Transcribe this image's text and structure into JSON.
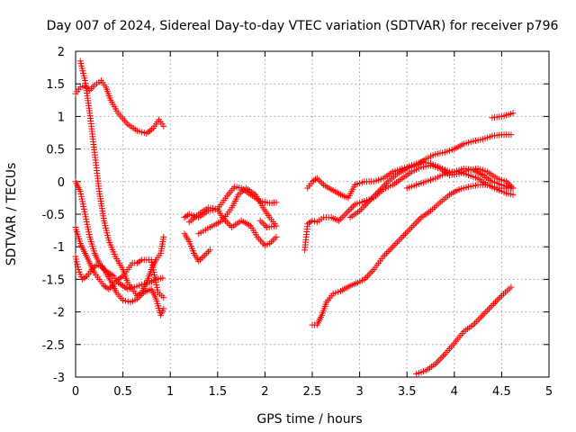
{
  "chart_data": {
    "type": "scatter",
    "title": "Day 007 of 2024, Sidereal Day-to-day VTEC variation (SDTVAR) for receiver p796",
    "xlabel": "GPS time / hours",
    "ylabel": "SDTVAR / TECUs",
    "xlim": [
      0,
      5
    ],
    "ylim": [
      -3,
      2
    ],
    "xticks": [
      0,
      0.5,
      1,
      1.5,
      2,
      2.5,
      3,
      3.5,
      4,
      4.5,
      5
    ],
    "xtick_labels": [
      "0",
      "0.5",
      "1",
      "1.5",
      "2",
      "2.5",
      "3",
      "3.5",
      "4",
      "4.5",
      "5"
    ],
    "yticks": [
      2,
      1.5,
      1,
      0.5,
      0,
      -0.5,
      -1,
      -1.5,
      -2,
      -2.5,
      -3
    ],
    "ytick_labels": [
      "2",
      "1.5",
      "1",
      "0.5",
      "0",
      "-0.5",
      "-1",
      "-1.5",
      "-2",
      "-2.5",
      "-3"
    ],
    "grid": true,
    "marker": "plus",
    "color": "#ff0000",
    "series": [
      {
        "name": "s1",
        "points": [
          [
            0.0,
            1.35
          ],
          [
            0.05,
            1.45
          ],
          [
            0.1,
            1.47
          ],
          [
            0.15,
            1.4
          ],
          [
            0.2,
            1.48
          ],
          [
            0.27,
            1.55
          ],
          [
            0.32,
            1.45
          ],
          [
            0.37,
            1.25
          ],
          [
            0.45,
            1.05
          ],
          [
            0.55,
            0.88
          ],
          [
            0.65,
            0.78
          ],
          [
            0.75,
            0.74
          ],
          [
            0.82,
            0.82
          ],
          [
            0.88,
            0.95
          ],
          [
            0.93,
            0.85
          ]
        ]
      },
      {
        "name": "s2",
        "points": [
          [
            0.05,
            1.85
          ],
          [
            0.1,
            1.55
          ],
          [
            0.15,
            1.05
          ],
          [
            0.2,
            0.45
          ],
          [
            0.25,
            -0.15
          ],
          [
            0.3,
            -0.6
          ],
          [
            0.35,
            -0.9
          ],
          [
            0.42,
            -1.15
          ],
          [
            0.5,
            -1.35
          ],
          [
            0.55,
            -1.55
          ],
          [
            0.6,
            -1.65
          ],
          [
            0.65,
            -1.75
          ],
          [
            0.7,
            -1.7
          ],
          [
            0.75,
            -1.55
          ],
          [
            0.8,
            -1.35
          ],
          [
            0.85,
            -1.2
          ],
          [
            0.9,
            -1.1
          ],
          [
            0.93,
            -0.85
          ]
        ]
      },
      {
        "name": "s3",
        "points": [
          [
            0.0,
            0.0
          ],
          [
            0.05,
            -0.15
          ],
          [
            0.1,
            -0.5
          ],
          [
            0.15,
            -0.85
          ],
          [
            0.2,
            -1.1
          ],
          [
            0.25,
            -1.25
          ],
          [
            0.3,
            -1.35
          ],
          [
            0.35,
            -1.4
          ],
          [
            0.4,
            -1.45
          ],
          [
            0.45,
            -1.55
          ],
          [
            0.5,
            -1.6
          ],
          [
            0.55,
            -1.65
          ],
          [
            0.62,
            -1.62
          ],
          [
            0.7,
            -1.58
          ],
          [
            0.78,
            -1.55
          ],
          [
            0.85,
            -1.5
          ],
          [
            0.92,
            -1.48
          ]
        ]
      },
      {
        "name": "s4",
        "points": [
          [
            0.0,
            -1.15
          ],
          [
            0.03,
            -1.35
          ],
          [
            0.07,
            -1.5
          ],
          [
            0.12,
            -1.45
          ],
          [
            0.17,
            -1.35
          ],
          [
            0.22,
            -1.28
          ],
          [
            0.28,
            -1.3
          ],
          [
            0.32,
            -1.4
          ],
          [
            0.38,
            -1.55
          ],
          [
            0.43,
            -1.7
          ],
          [
            0.5,
            -1.82
          ],
          [
            0.58,
            -1.85
          ],
          [
            0.65,
            -1.8
          ],
          [
            0.72,
            -1.7
          ],
          [
            0.8,
            -1.65
          ],
          [
            0.85,
            -1.8
          ],
          [
            0.9,
            -2.05
          ],
          [
            0.93,
            -1.95
          ]
        ]
      },
      {
        "name": "s5",
        "points": [
          [
            0.0,
            -0.7
          ],
          [
            0.05,
            -0.95
          ],
          [
            0.1,
            -1.1
          ],
          [
            0.15,
            -1.25
          ],
          [
            0.2,
            -1.4
          ],
          [
            0.25,
            -1.5
          ],
          [
            0.3,
            -1.6
          ],
          [
            0.35,
            -1.65
          ],
          [
            0.4,
            -1.58
          ],
          [
            0.45,
            -1.5
          ],
          [
            0.5,
            -1.45
          ],
          [
            0.55,
            -1.35
          ],
          [
            0.6,
            -1.25
          ],
          [
            0.65,
            -1.25
          ],
          [
            0.7,
            -1.2
          ],
          [
            0.75,
            -1.2
          ],
          [
            0.8,
            -1.2
          ],
          [
            0.87,
            -1.7
          ],
          [
            0.93,
            -1.78
          ]
        ]
      },
      {
        "name": "s6",
        "points": [
          [
            1.15,
            -0.55
          ],
          [
            1.2,
            -0.5
          ],
          [
            1.3,
            -0.55
          ],
          [
            1.4,
            -0.45
          ],
          [
            1.5,
            -0.42
          ],
          [
            1.6,
            -0.22
          ],
          [
            1.68,
            -0.08
          ],
          [
            1.75,
            -0.1
          ],
          [
            1.85,
            -0.2
          ],
          [
            1.95,
            -0.3
          ],
          [
            2.05,
            -0.33
          ],
          [
            2.12,
            -0.32
          ]
        ]
      },
      {
        "name": "s7",
        "points": [
          [
            1.15,
            -0.8
          ],
          [
            1.2,
            -0.92
          ],
          [
            1.25,
            -1.1
          ],
          [
            1.3,
            -1.22
          ],
          [
            1.35,
            -1.15
          ],
          [
            1.42,
            -1.05
          ]
        ]
      },
      {
        "name": "s8",
        "points": [
          [
            1.2,
            -0.62
          ],
          [
            1.3,
            -0.5
          ],
          [
            1.4,
            -0.4
          ],
          [
            1.5,
            -0.42
          ],
          [
            1.55,
            -0.55
          ],
          [
            1.65,
            -0.7
          ],
          [
            1.75,
            -0.6
          ],
          [
            1.85,
            -0.68
          ],
          [
            1.92,
            -0.85
          ],
          [
            2.0,
            -0.98
          ],
          [
            2.05,
            -0.95
          ],
          [
            2.12,
            -0.85
          ]
        ]
      },
      {
        "name": "s9",
        "points": [
          [
            1.3,
            -0.8
          ],
          [
            1.42,
            -0.7
          ],
          [
            1.55,
            -0.6
          ],
          [
            1.65,
            -0.4
          ],
          [
            1.72,
            -0.2
          ],
          [
            1.8,
            -0.1
          ],
          [
            1.9,
            -0.2
          ],
          [
            1.98,
            -0.4
          ],
          [
            2.05,
            -0.55
          ],
          [
            2.12,
            -0.68
          ],
          [
            2.02,
            -0.7
          ],
          [
            1.95,
            -0.6
          ]
        ]
      },
      {
        "name": "s10",
        "points": [
          [
            2.42,
            -1.05
          ],
          [
            2.45,
            -0.65
          ],
          [
            2.5,
            -0.6
          ],
          [
            2.55,
            -0.62
          ],
          [
            2.62,
            -0.55
          ],
          [
            2.7,
            -0.55
          ],
          [
            2.78,
            -0.6
          ],
          [
            2.85,
            -0.5
          ],
          [
            2.95,
            -0.35
          ],
          [
            3.05,
            -0.3
          ],
          [
            3.15,
            -0.25
          ],
          [
            3.25,
            -0.12
          ],
          [
            3.35,
            -0.05
          ],
          [
            3.45,
            0.05
          ],
          [
            3.55,
            0.15
          ],
          [
            3.65,
            0.22
          ],
          [
            3.75,
            0.25
          ],
          [
            3.85,
            0.2
          ],
          [
            3.95,
            0.1
          ],
          [
            4.05,
            0.12
          ],
          [
            4.15,
            0.18
          ],
          [
            4.25,
            0.2
          ],
          [
            4.35,
            0.15
          ],
          [
            4.45,
            0.05
          ],
          [
            4.55,
            0.0
          ],
          [
            4.62,
            -0.1
          ]
        ]
      },
      {
        "name": "s11",
        "points": [
          [
            2.45,
            -0.1
          ],
          [
            2.5,
            0.0
          ],
          [
            2.55,
            0.05
          ],
          [
            2.62,
            -0.05
          ],
          [
            2.7,
            -0.12
          ],
          [
            2.8,
            -0.2
          ],
          [
            2.88,
            -0.25
          ],
          [
            2.95,
            -0.05
          ],
          [
            3.05,
            0.0
          ],
          [
            3.15,
            0.0
          ],
          [
            3.25,
            0.05
          ],
          [
            3.35,
            0.15
          ],
          [
            3.45,
            0.2
          ],
          [
            3.55,
            0.25
          ],
          [
            3.65,
            0.3
          ],
          [
            3.75,
            0.28
          ],
          [
            3.85,
            0.22
          ],
          [
            3.95,
            0.15
          ],
          [
            4.05,
            0.15
          ],
          [
            4.15,
            0.1
          ],
          [
            4.25,
            0.05
          ],
          [
            4.35,
            -0.05
          ],
          [
            4.45,
            -0.1
          ],
          [
            4.55,
            -0.1
          ],
          [
            4.62,
            -0.1
          ]
        ]
      },
      {
        "name": "s12",
        "points": [
          [
            2.5,
            -2.2
          ],
          [
            2.55,
            -2.2
          ],
          [
            2.6,
            -2.05
          ],
          [
            2.65,
            -1.85
          ],
          [
            2.72,
            -1.72
          ],
          [
            2.8,
            -1.68
          ],
          [
            2.9,
            -1.6
          ],
          [
            2.98,
            -1.55
          ],
          [
            3.05,
            -1.5
          ],
          [
            3.15,
            -1.35
          ],
          [
            3.25,
            -1.15
          ],
          [
            3.35,
            -1.0
          ],
          [
            3.45,
            -0.85
          ],
          [
            3.55,
            -0.7
          ],
          [
            3.65,
            -0.55
          ],
          [
            3.75,
            -0.45
          ],
          [
            3.85,
            -0.32
          ],
          [
            3.95,
            -0.2
          ],
          [
            4.05,
            -0.12
          ],
          [
            4.15,
            -0.08
          ],
          [
            4.25,
            -0.05
          ],
          [
            4.35,
            -0.05
          ],
          [
            4.45,
            -0.12
          ],
          [
            4.55,
            -0.18
          ],
          [
            4.62,
            -0.2
          ]
        ]
      },
      {
        "name": "s13",
        "points": [
          [
            2.9,
            -0.55
          ],
          [
            3.0,
            -0.45
          ],
          [
            3.1,
            -0.3
          ],
          [
            3.2,
            -0.15
          ],
          [
            3.3,
            0.0
          ],
          [
            3.4,
            0.12
          ],
          [
            3.5,
            0.2
          ],
          [
            3.6,
            0.25
          ],
          [
            3.7,
            0.35
          ],
          [
            3.8,
            0.42
          ],
          [
            3.9,
            0.45
          ],
          [
            4.0,
            0.5
          ],
          [
            4.1,
            0.58
          ],
          [
            4.2,
            0.62
          ],
          [
            4.3,
            0.65
          ],
          [
            4.4,
            0.7
          ],
          [
            4.5,
            0.72
          ],
          [
            4.6,
            0.72
          ]
        ]
      },
      {
        "name": "s14",
        "points": [
          [
            3.5,
            -0.1
          ],
          [
            3.6,
            -0.05
          ],
          [
            3.7,
            0.0
          ],
          [
            3.8,
            0.05
          ],
          [
            3.9,
            0.12
          ],
          [
            4.0,
            0.15
          ],
          [
            4.1,
            0.2
          ],
          [
            4.2,
            0.18
          ],
          [
            4.3,
            0.1
          ],
          [
            4.4,
            0.0
          ],
          [
            4.5,
            -0.05
          ],
          [
            4.6,
            -0.1
          ]
        ]
      },
      {
        "name": "s15",
        "points": [
          [
            4.4,
            0.98
          ],
          [
            4.5,
            1.0
          ],
          [
            4.55,
            1.02
          ],
          [
            4.62,
            1.05
          ]
        ]
      },
      {
        "name": "s16",
        "points": [
          [
            3.6,
            -2.95
          ],
          [
            3.7,
            -2.9
          ],
          [
            3.8,
            -2.8
          ],
          [
            3.9,
            -2.65
          ],
          [
            4.0,
            -2.48
          ],
          [
            4.1,
            -2.3
          ],
          [
            4.2,
            -2.2
          ],
          [
            4.3,
            -2.05
          ],
          [
            4.4,
            -1.9
          ],
          [
            4.5,
            -1.75
          ],
          [
            4.6,
            -1.62
          ]
        ]
      }
    ]
  }
}
